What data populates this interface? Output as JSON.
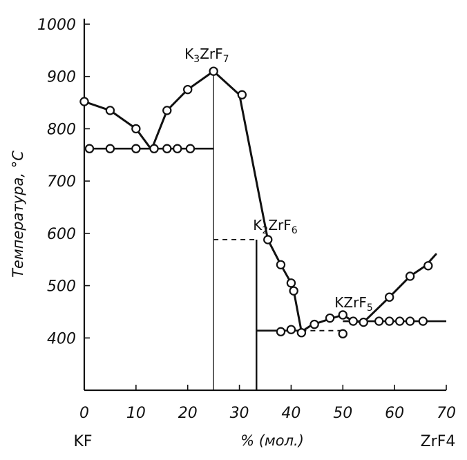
{
  "chart_data": {
    "type": "line",
    "ylabel": "Температура, °С",
    "xlabel": "% (мол.)",
    "left_component": "KF",
    "right_component": "ZrF4",
    "xlim": [
      0,
      70
    ],
    "ylim": [
      300,
      1000
    ],
    "x_ticks": [
      0,
      10,
      20,
      30,
      40,
      50,
      60,
      70
    ],
    "y_ticks": [
      400,
      500,
      600,
      700,
      800,
      900,
      1000
    ],
    "grid": false,
    "compounds": [
      {
        "base": "K",
        "s1": "3",
        "mid": "ZrF",
        "s2": "7",
        "x": 25,
        "y": 910
      },
      {
        "base": "K",
        "s1": "2",
        "mid": "ZrF",
        "s2": "6",
        "x": 33.3,
        "y": 588
      },
      {
        "base": "KZrF",
        "s1": "",
        "mid": "",
        "s2": "5",
        "x": 50,
        "y": 415
      }
    ],
    "series": [
      {
        "style": "liquidus",
        "points": [
          [
            0,
            852
          ],
          [
            5,
            835
          ],
          [
            10,
            800
          ],
          [
            13,
            760
          ]
        ]
      },
      {
        "style": "liquidus",
        "points": [
          [
            13,
            760
          ],
          [
            16,
            835
          ],
          [
            20,
            875
          ],
          [
            25,
            910
          ],
          [
            30,
            865
          ],
          [
            35.5,
            588
          ],
          [
            38,
            540
          ],
          [
            40,
            505
          ],
          [
            40.5,
            490
          ],
          [
            42,
            412
          ]
        ]
      },
      {
        "style": "liquidus",
        "points": [
          [
            42,
            412
          ],
          [
            44,
            425
          ],
          [
            48,
            438
          ],
          [
            50,
            444
          ],
          [
            52,
            432
          ],
          [
            54,
            430
          ]
        ]
      },
      {
        "style": "liquidus",
        "points": [
          [
            54,
            430
          ],
          [
            59,
            478
          ],
          [
            63,
            518
          ],
          [
            66,
            538
          ],
          [
            68,
            560
          ]
        ]
      },
      {
        "style": "solidus",
        "points": [
          [
            0,
            762
          ],
          [
            25,
            762
          ]
        ]
      },
      {
        "style": "solidus",
        "points": [
          [
            33.3,
            414
          ],
          [
            42,
            414
          ]
        ]
      },
      {
        "style": "solidus-dashed",
        "points": [
          [
            42,
            414
          ],
          [
            50,
            414
          ]
        ]
      },
      {
        "style": "solidus",
        "points": [
          [
            50,
            432
          ],
          [
            70,
            432
          ]
        ]
      },
      {
        "style": "dashed",
        "points": [
          [
            25,
            588
          ],
          [
            33.3,
            588
          ]
        ]
      }
    ],
    "points": [
      [
        0,
        852
      ],
      [
        5,
        835
      ],
      [
        10,
        800
      ],
      [
        1,
        762
      ],
      [
        5,
        762
      ],
      [
        10,
        762
      ],
      [
        13.5,
        762
      ],
      [
        16,
        762
      ],
      [
        18,
        762
      ],
      [
        20.5,
        762
      ],
      [
        16,
        835
      ],
      [
        20,
        875
      ],
      [
        25,
        910
      ],
      [
        30.5,
        865
      ],
      [
        35.5,
        588
      ],
      [
        38,
        540
      ],
      [
        40,
        505
      ],
      [
        40.5,
        490
      ],
      [
        38,
        412
      ],
      [
        40,
        416
      ],
      [
        42,
        410
      ],
      [
        44.5,
        426
      ],
      [
        47.5,
        438
      ],
      [
        50,
        444
      ],
      [
        50,
        408
      ],
      [
        52,
        432
      ],
      [
        54,
        430
      ],
      [
        57,
        432
      ],
      [
        59,
        432
      ],
      [
        61,
        432
      ],
      [
        63,
        432
      ],
      [
        65.5,
        432
      ],
      [
        59,
        478
      ],
      [
        63,
        518
      ],
      [
        66.5,
        538
      ]
    ],
    "verticals": [
      {
        "x": 25,
        "y_top": 910,
        "weight": "thin"
      },
      {
        "x": 33.3,
        "y_top": 588,
        "weight": "mid"
      }
    ]
  }
}
